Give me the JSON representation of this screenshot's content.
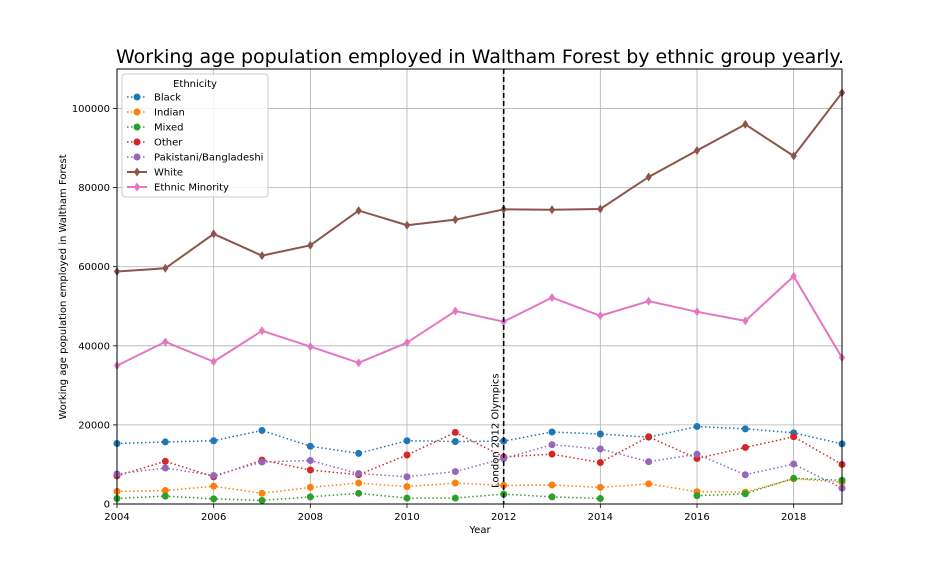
{
  "chart_data": {
    "type": "line",
    "title": "Working age population employed in Waltham Forest by ethnic group yearly.",
    "xlabel": "Year",
    "ylabel": "Working age population employed in Waltham Forest",
    "xlim": [
      2004,
      2019
    ],
    "ylim": [
      0,
      110000
    ],
    "x_ticks": [
      2004,
      2006,
      2008,
      2010,
      2012,
      2014,
      2016,
      2018
    ],
    "y_ticks": [
      0,
      20000,
      40000,
      60000,
      80000,
      100000
    ],
    "y_tick_labels": [
      "0",
      "20000",
      "40000",
      "60000",
      "80000",
      "100000"
    ],
    "x_tick_labels": [
      "2004",
      "2006",
      "2008",
      "2010",
      "2012",
      "2014",
      "2016",
      "2018"
    ],
    "grid": true,
    "legend": {
      "title": "Ethnicity",
      "placement": "top-left"
    },
    "vline": {
      "x": 2012,
      "label": "London 2012 Olympics",
      "style": "dashed",
      "color": "#000000"
    },
    "x": [
      2004,
      2005,
      2006,
      2007,
      2008,
      2009,
      2010,
      2011,
      2012,
      2013,
      2014,
      2015,
      2016,
      2017,
      2018,
      2019
    ],
    "series": [
      {
        "name": "Black",
        "color": "#1f77b4",
        "style": "dotted",
        "marker": "circle",
        "values": [
          15300,
          15700,
          16000,
          18600,
          14600,
          12800,
          16000,
          15800,
          15900,
          18200,
          17700,
          16900,
          19600,
          19000,
          18000,
          15200
        ]
      },
      {
        "name": "Indian",
        "color": "#ff7f0e",
        "style": "dotted",
        "marker": "circle",
        "values": [
          3200,
          3400,
          4500,
          2700,
          4200,
          5300,
          4400,
          5300,
          4700,
          4800,
          4200,
          5100,
          3100,
          3000,
          6400,
          5500
        ]
      },
      {
        "name": "Mixed",
        "color": "#2ca02c",
        "style": "dotted",
        "marker": "circle",
        "values": [
          1400,
          2000,
          1300,
          900,
          1800,
          2700,
          1500,
          1500,
          2500,
          1800,
          1400,
          null,
          2100,
          2600,
          6500,
          6000
        ]
      },
      {
        "name": "Other",
        "color": "#d62728",
        "style": "dotted",
        "marker": "circle",
        "values": [
          7100,
          10800,
          6900,
          11100,
          8600,
          7400,
          12400,
          18100,
          11900,
          12600,
          10500,
          17000,
          11500,
          14300,
          17000,
          10000
        ]
      },
      {
        "name": "Pakistani/Bangladeshi",
        "color": "#9467bd",
        "style": "dotted",
        "marker": "circle",
        "values": [
          7600,
          9100,
          7200,
          10600,
          11000,
          7700,
          6900,
          8200,
          11500,
          15000,
          13900,
          10700,
          12600,
          7400,
          10100,
          4000
        ]
      },
      {
        "name": "White",
        "color": "#8c564b",
        "style": "solid",
        "marker": "diamond",
        "values": [
          58800,
          59600,
          68300,
          62800,
          65400,
          74200,
          70500,
          71900,
          74500,
          74400,
          74600,
          82700,
          89400,
          96000,
          88000,
          104000
        ]
      },
      {
        "name": "Ethnic Minority",
        "color": "#e377c2",
        "style": "solid",
        "marker": "diamond",
        "values": [
          35000,
          41000,
          36000,
          43800,
          39800,
          35700,
          40800,
          48800,
          46100,
          52200,
          47600,
          51300,
          48600,
          46300,
          57600,
          37000
        ]
      }
    ]
  }
}
